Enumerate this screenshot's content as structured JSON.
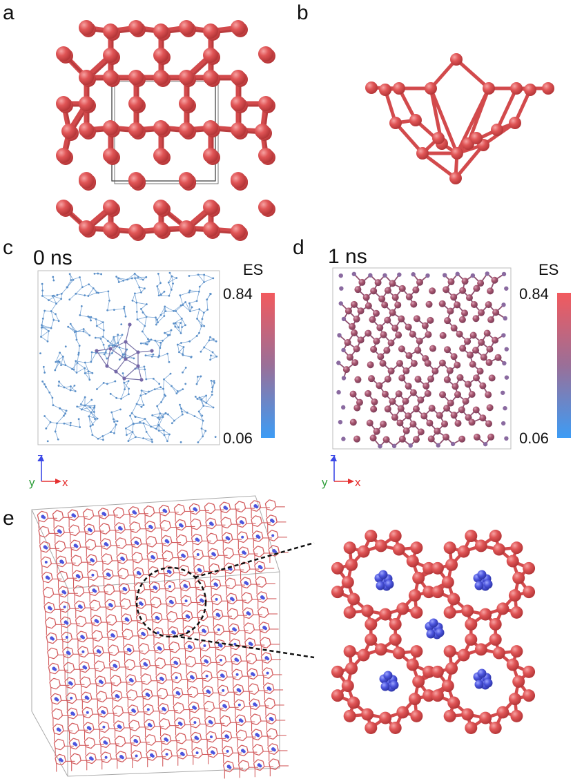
{
  "panels": {
    "a": {
      "label": "a"
    },
    "b": {
      "label": "b"
    },
    "c": {
      "label": "c",
      "time": "0 ns"
    },
    "d": {
      "label": "d",
      "time": "1 ns"
    },
    "e": {
      "label": "e"
    }
  },
  "colorbar": {
    "title": "ES",
    "max": "0.84",
    "min": "0.06",
    "color_top": "#f25a5e",
    "color_mid": "#9a6f98",
    "color_bottom": "#3d9cf5"
  },
  "axes_triad": {
    "z": "z",
    "y": "y",
    "x": "x"
  },
  "colors": {
    "atom": "#dd4f50",
    "bond": "#d24a4c",
    "guest": "#4c55dd",
    "liquid": "#5a8fc8"
  }
}
